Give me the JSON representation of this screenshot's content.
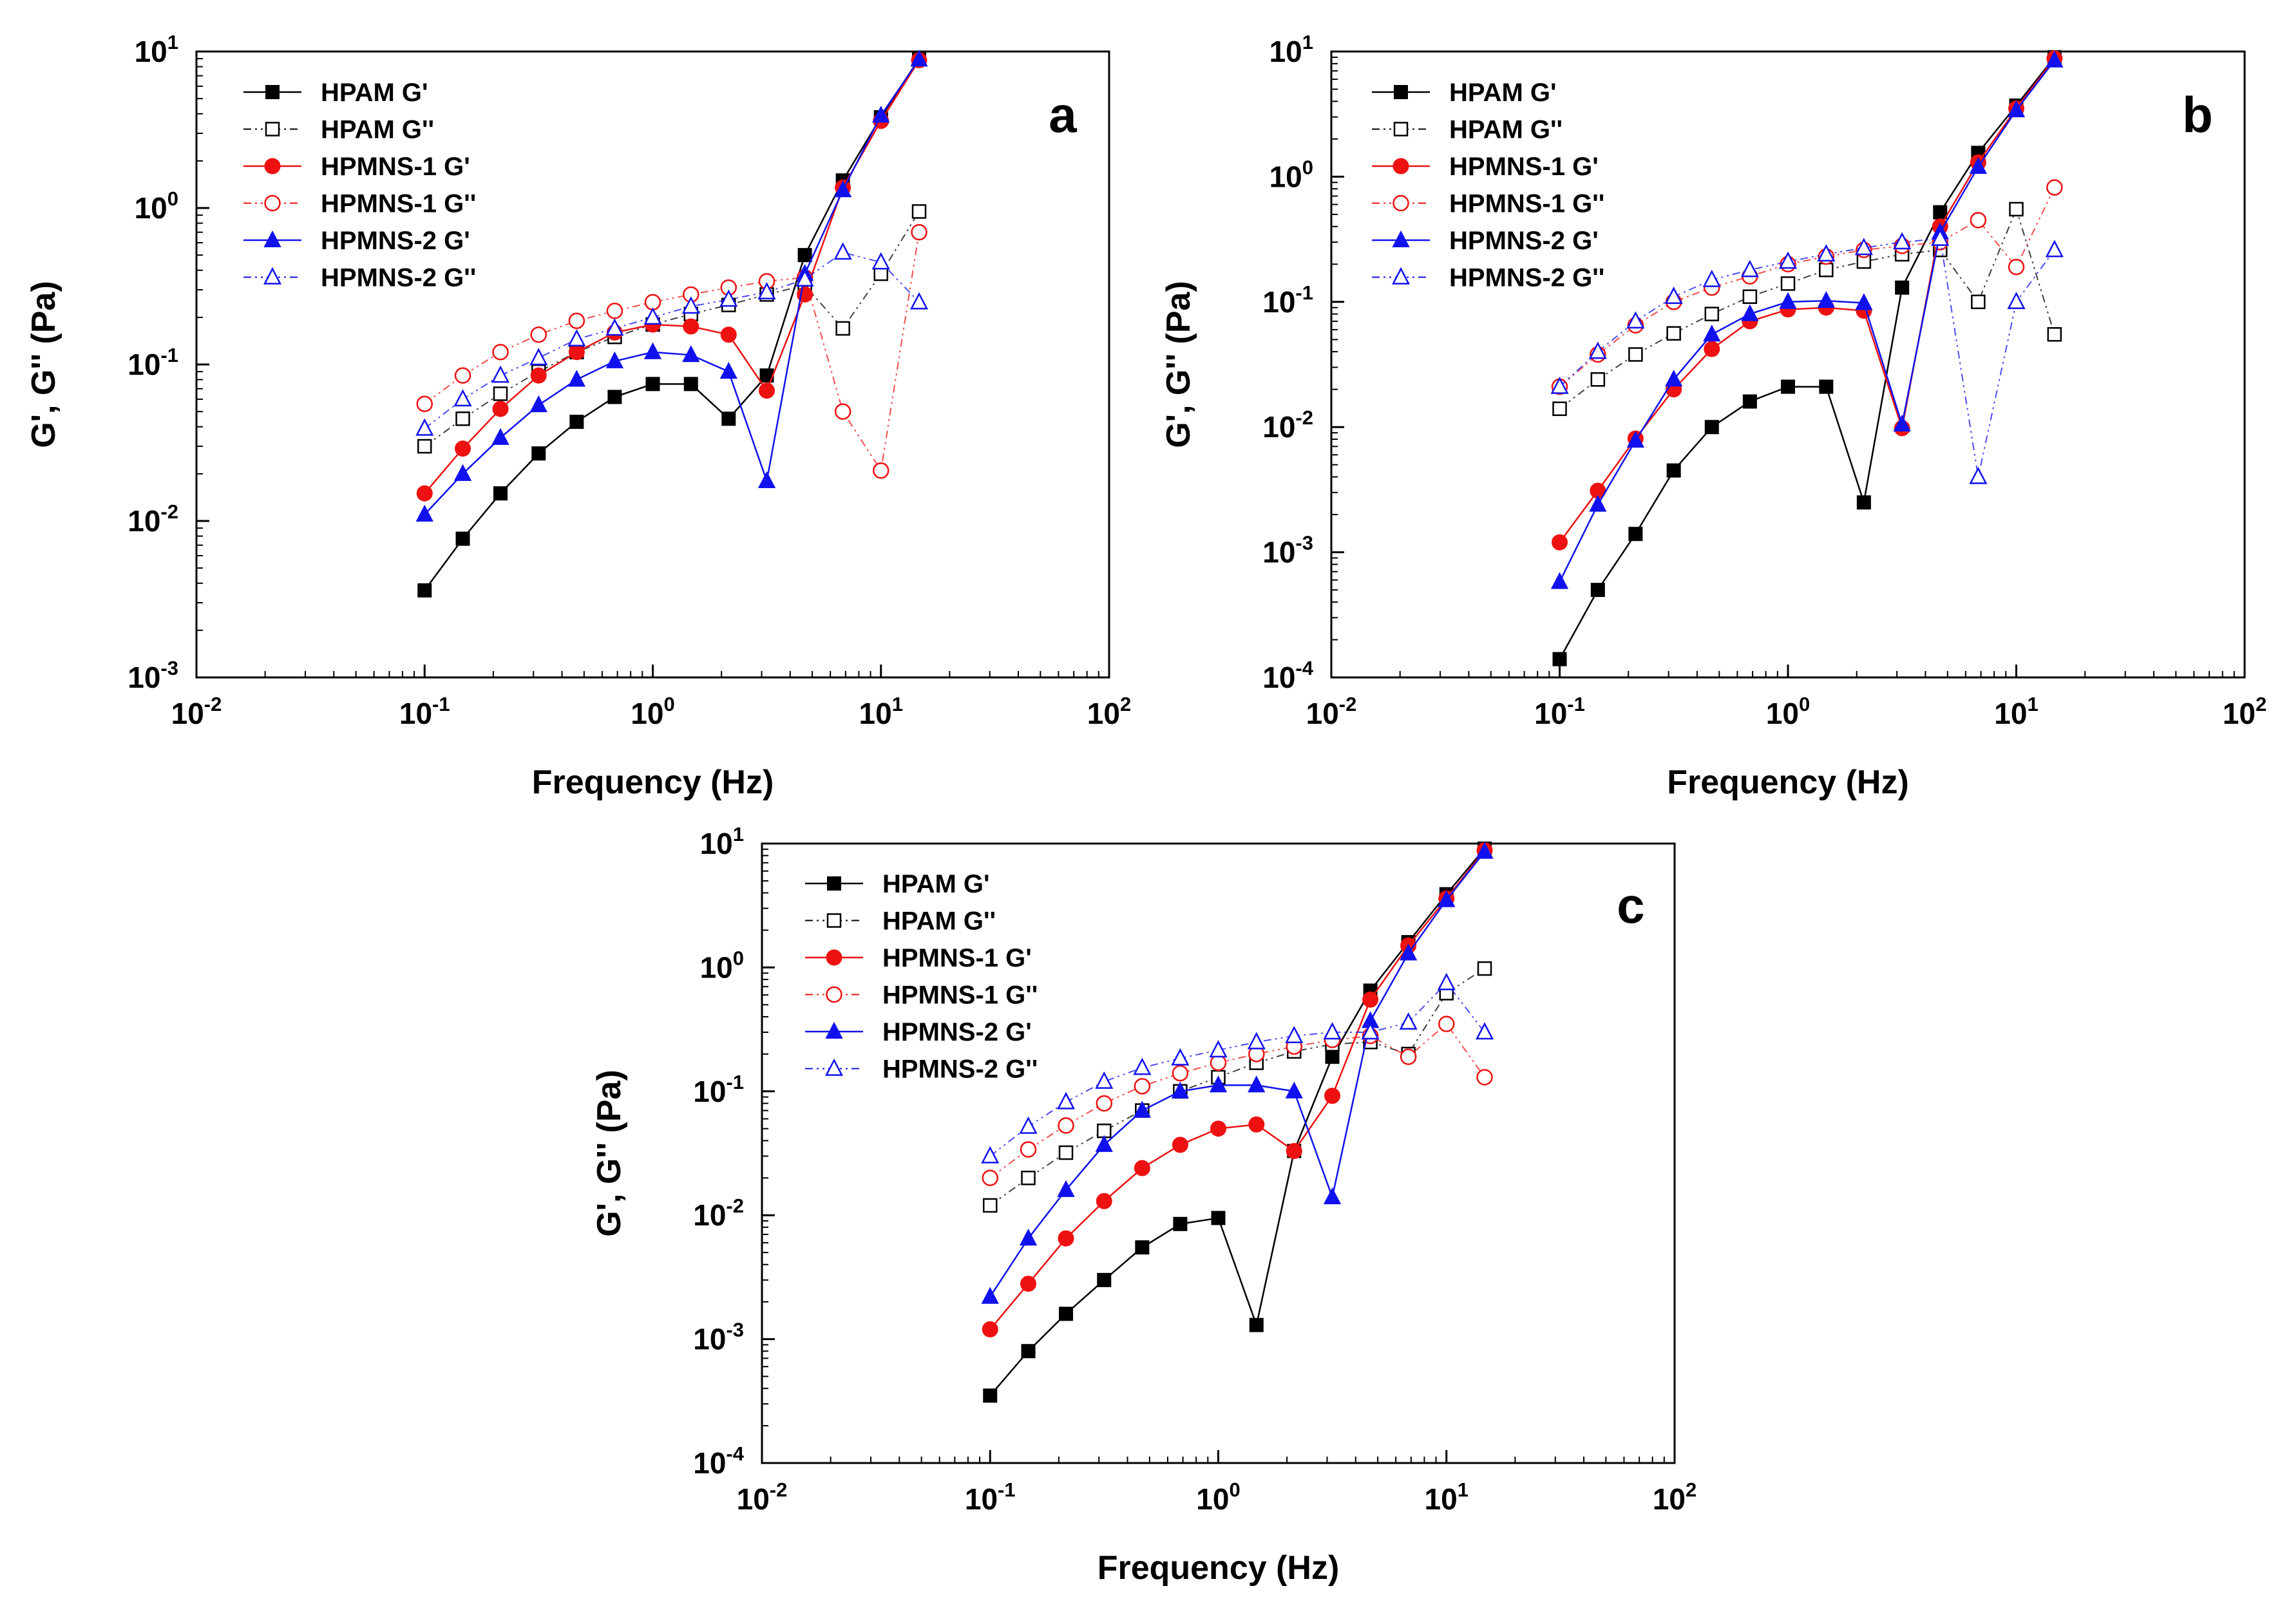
{
  "figure": {
    "colors": {
      "HPAM": "#000000",
      "HPMNS-1": "#ee1111",
      "HPMNS-2": "#1111ee"
    },
    "marker_shapes": {
      "HPAM": "square",
      "HPMNS-1": "circle",
      "HPMNS-2": "triangle"
    }
  },
  "chart_data": [
    {
      "panel": "a",
      "type": "line",
      "xscale": "log",
      "yscale": "log",
      "xlabel": "Frequency (Hz)",
      "ylabel": "G', G'' (Pa)",
      "xlim": [
        0.01,
        100
      ],
      "ylim": [
        0.001,
        10
      ],
      "x_ticks": [
        "10-2",
        "10-1",
        "100",
        "101",
        "102"
      ],
      "y_ticks": [
        "10-3",
        "10-2",
        "10-1",
        "100",
        "101"
      ],
      "legend_position": "top-left",
      "x": [
        0.1,
        0.147,
        0.215,
        0.316,
        0.464,
        0.681,
        1.0,
        1.47,
        2.15,
        3.16,
        4.64,
        6.81,
        10,
        14.7
      ],
      "series": [
        {
          "name": "HPAM G'",
          "values": [
            0.0036,
            0.0077,
            0.015,
            0.027,
            0.043,
            0.062,
            0.075,
            0.075,
            0.045,
            0.085,
            0.5,
            1.5,
            3.8,
            9.0
          ]
        },
        {
          "name": "HPAM G''",
          "values": [
            0.03,
            0.045,
            0.065,
            0.09,
            0.12,
            0.15,
            0.18,
            0.21,
            0.24,
            0.28,
            0.32,
            0.17,
            0.38,
            0.95
          ]
        },
        {
          "name": "HPMNS-1 G'",
          "values": [
            0.015,
            0.029,
            0.052,
            0.085,
            0.12,
            0.16,
            0.18,
            0.175,
            0.155,
            0.068,
            0.28,
            1.35,
            3.6,
            8.8
          ]
        },
        {
          "name": "HPMNS-1 G''",
          "values": [
            0.056,
            0.085,
            0.12,
            0.155,
            0.19,
            0.22,
            0.25,
            0.28,
            0.31,
            0.34,
            0.36,
            0.05,
            0.021,
            0.7
          ]
        },
        {
          "name": "HPMNS-2 G'",
          "values": [
            0.011,
            0.02,
            0.034,
            0.055,
            0.08,
            0.105,
            0.12,
            0.115,
            0.09,
            0.018,
            0.38,
            1.3,
            3.9,
            8.9
          ]
        },
        {
          "name": "HPMNS-2 G''",
          "values": [
            0.039,
            0.06,
            0.085,
            0.11,
            0.145,
            0.17,
            0.2,
            0.235,
            0.26,
            0.29,
            0.35,
            0.52,
            0.45,
            0.25
          ]
        }
      ]
    },
    {
      "panel": "b",
      "type": "line",
      "xscale": "log",
      "yscale": "log",
      "xlabel": "Frequency (Hz)",
      "ylabel": "G', G'' (Pa)",
      "xlim": [
        0.01,
        100
      ],
      "ylim": [
        0.0001,
        10
      ],
      "x_ticks": [
        "10-2",
        "10-1",
        "100",
        "101",
        "102"
      ],
      "y_ticks": [
        "10-4",
        "10-3",
        "10-2",
        "10-1",
        "100",
        "101"
      ],
      "legend_position": "top-left",
      "x": [
        0.1,
        0.147,
        0.215,
        0.316,
        0.464,
        0.681,
        1.0,
        1.47,
        2.15,
        3.16,
        4.64,
        6.81,
        10,
        14.7
      ],
      "series": [
        {
          "name": "HPAM G'",
          "values": [
            0.00014,
            0.0005,
            0.0014,
            0.0045,
            0.01,
            0.016,
            0.021,
            0.021,
            0.0025,
            0.13,
            0.52,
            1.55,
            3.7,
            9.0
          ]
        },
        {
          "name": "HPAM G''",
          "values": [
            0.014,
            0.024,
            0.038,
            0.056,
            0.08,
            0.11,
            0.14,
            0.18,
            0.21,
            0.24,
            0.26,
            0.1,
            0.55,
            0.055
          ]
        },
        {
          "name": "HPMNS-1 G'",
          "values": [
            0.0012,
            0.0031,
            0.0081,
            0.02,
            0.042,
            0.07,
            0.087,
            0.09,
            0.085,
            0.0098,
            0.4,
            1.3,
            3.5,
            8.8
          ]
        },
        {
          "name": "HPMNS-1 G''",
          "values": [
            0.021,
            0.038,
            0.065,
            0.1,
            0.13,
            0.16,
            0.2,
            0.23,
            0.26,
            0.28,
            0.3,
            0.45,
            0.19,
            0.82
          ]
        },
        {
          "name": "HPMNS-2 G'",
          "values": [
            0.00058,
            0.0024,
            0.0078,
            0.024,
            0.055,
            0.08,
            0.1,
            0.102,
            0.098,
            0.0105,
            0.36,
            1.2,
            3.4,
            8.5
          ]
        },
        {
          "name": "HPMNS-2 G''",
          "values": [
            0.021,
            0.04,
            0.07,
            0.11,
            0.15,
            0.18,
            0.21,
            0.24,
            0.27,
            0.3,
            0.32,
            0.004,
            0.1,
            0.26
          ]
        }
      ]
    },
    {
      "panel": "c",
      "type": "line",
      "xscale": "log",
      "yscale": "log",
      "xlabel": "Frequency (Hz)",
      "ylabel": "G', G'' (Pa)",
      "xlim": [
        0.01,
        100
      ],
      "ylim": [
        0.0001,
        10
      ],
      "x_ticks": [
        "10-2",
        "10-1",
        "100",
        "101",
        "102"
      ],
      "y_ticks": [
        "10-4",
        "10-3",
        "10-2",
        "10-1",
        "100",
        "101"
      ],
      "legend_position": "top-left",
      "x": [
        0.1,
        0.147,
        0.215,
        0.316,
        0.464,
        0.681,
        1.0,
        1.47,
        2.15,
        3.16,
        4.64,
        6.81,
        10,
        14.7
      ],
      "series": [
        {
          "name": "HPAM G'",
          "values": [
            0.00035,
            0.0008,
            0.0016,
            0.003,
            0.0055,
            0.0085,
            0.0095,
            0.0013,
            0.033,
            0.19,
            0.65,
            1.6,
            3.9,
            9.1
          ]
        },
        {
          "name": "HPAM G''",
          "values": [
            0.012,
            0.02,
            0.032,
            0.048,
            0.07,
            0.1,
            0.13,
            0.17,
            0.21,
            0.24,
            0.25,
            0.2,
            0.62,
            0.98
          ]
        },
        {
          "name": "HPMNS-1 G'",
          "values": [
            0.0012,
            0.0028,
            0.0065,
            0.013,
            0.024,
            0.037,
            0.05,
            0.054,
            0.033,
            0.092,
            0.55,
            1.5,
            3.6,
            8.8
          ]
        },
        {
          "name": "HPMNS-1 G''",
          "values": [
            0.02,
            0.034,
            0.053,
            0.08,
            0.11,
            0.14,
            0.17,
            0.2,
            0.23,
            0.26,
            0.28,
            0.19,
            0.35,
            0.13
          ]
        },
        {
          "name": "HPMNS-2 G'",
          "values": [
            0.0022,
            0.0065,
            0.016,
            0.037,
            0.07,
            0.1,
            0.112,
            0.112,
            0.1,
            0.014,
            0.37,
            1.3,
            3.5,
            8.6
          ]
        },
        {
          "name": "HPMNS-2 G''",
          "values": [
            0.03,
            0.052,
            0.082,
            0.12,
            0.155,
            0.185,
            0.215,
            0.25,
            0.28,
            0.3,
            0.3,
            0.36,
            0.75,
            0.3
          ]
        }
      ]
    }
  ]
}
